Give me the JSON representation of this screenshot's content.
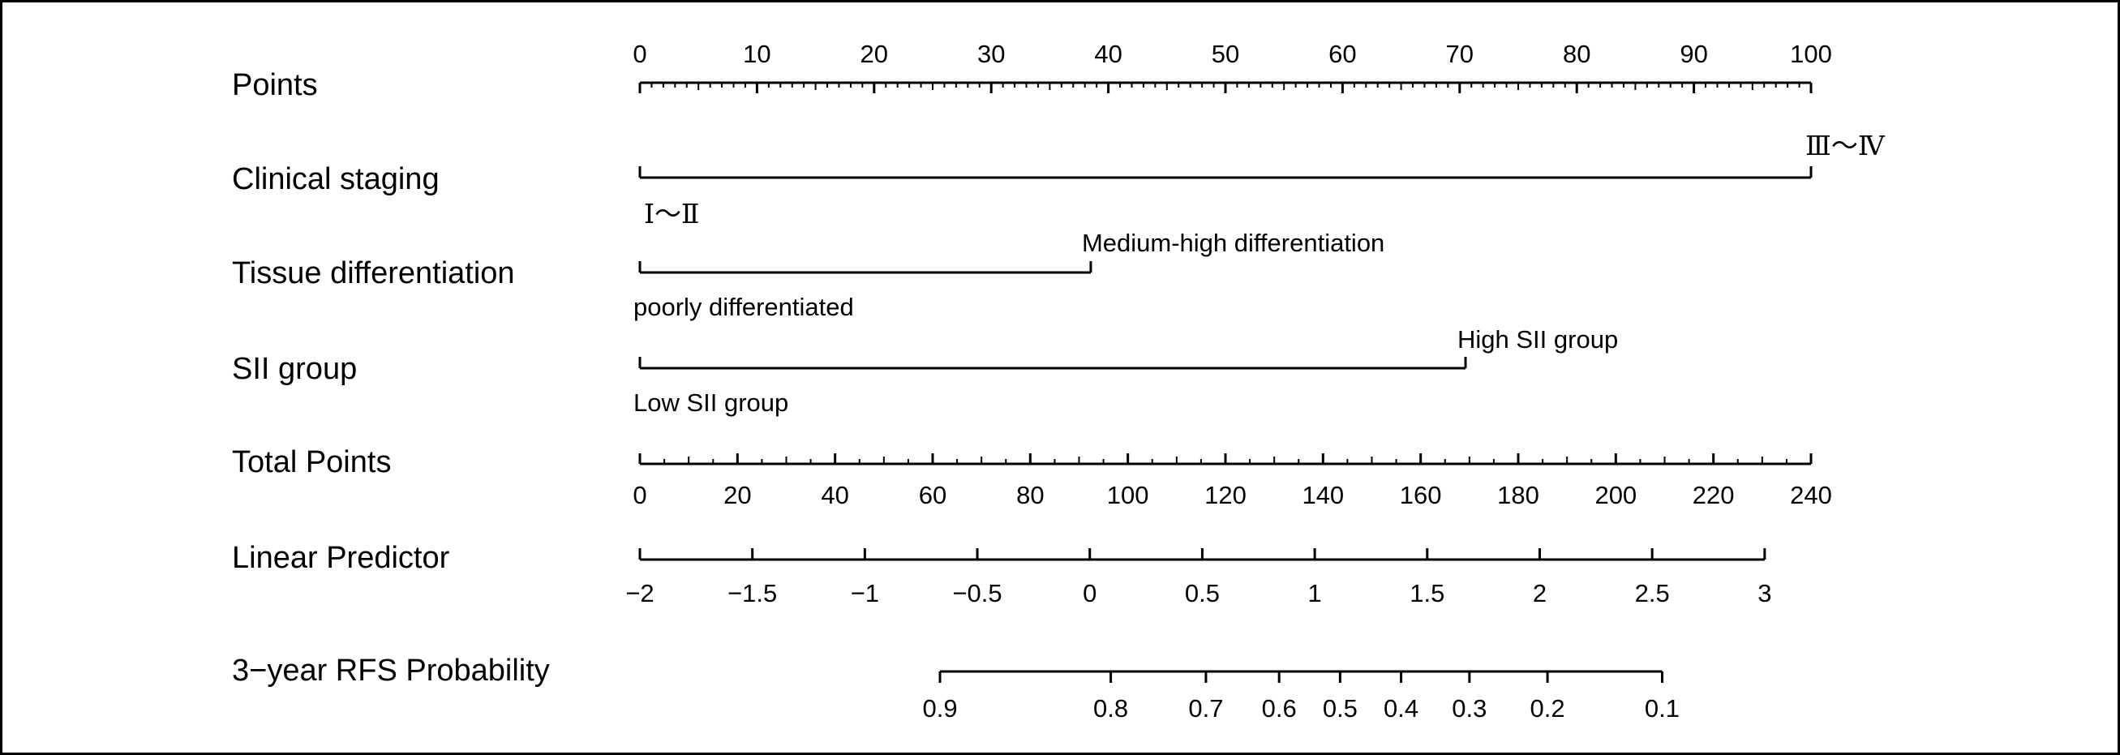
{
  "chart_data": {
    "type": "nomogram",
    "title": "",
    "rows": [
      {
        "id": "points",
        "label": "Points",
        "axis": {
          "min": 0,
          "max": 100,
          "major_ticks": [
            0,
            10,
            20,
            30,
            40,
            50,
            60,
            70,
            80,
            90,
            100
          ],
          "minor_step": 1
        }
      },
      {
        "id": "clinical_staging",
        "label": "Clinical staging",
        "levels": [
          {
            "label": "Ⅰ～Ⅱ",
            "points": 0
          },
          {
            "label": "Ⅲ～Ⅳ",
            "points": 100
          }
        ]
      },
      {
        "id": "tissue_differentiation",
        "label": "Tissue differentiation",
        "levels": [
          {
            "label": "poorly differentiated",
            "points": 0
          },
          {
            "label": "Medium-high differentiation",
            "points": 38.5
          }
        ]
      },
      {
        "id": "sii_group",
        "label": "SII group",
        "levels": [
          {
            "label": "Low SII group",
            "points": 0
          },
          {
            "label": "High SII group",
            "points": 70.5
          }
        ]
      },
      {
        "id": "total_points",
        "label": "Total Points",
        "axis": {
          "min": 0,
          "max": 240,
          "major_ticks": [
            0,
            20,
            40,
            60,
            80,
            100,
            120,
            140,
            160,
            180,
            200,
            220,
            240
          ],
          "minor_step": 5
        }
      },
      {
        "id": "linear_predictor",
        "label": "Linear Predictor",
        "axis": {
          "min": -2,
          "max": 3,
          "major_ticks": [
            -2,
            -1.5,
            -1,
            -0.5,
            0,
            0.5,
            1,
            1.5,
            2,
            2.5,
            3
          ],
          "tick_labels": [
            "−2",
            "−1.5",
            "−1",
            "−0.5",
            "0",
            "0.5",
            "1",
            "1.5",
            "2",
            "2.5",
            "3"
          ],
          "total_points_at_min": 0,
          "total_points_at_max": 230.5
        }
      },
      {
        "id": "rfs_probability",
        "label": "3−year RFS Probability",
        "axis": {
          "ticks": [
            {
              "label": "0.9",
              "total_points": 61.5
            },
            {
              "label": "0.8",
              "total_points": 96.5
            },
            {
              "label": "0.7",
              "total_points": 116
            },
            {
              "label": "0.6",
              "total_points": 131
            },
            {
              "label": "0.5",
              "total_points": 143.5
            },
            {
              "label": "0.4",
              "total_points": 156
            },
            {
              "label": "0.3",
              "total_points": 170
            },
            {
              "label": "0.2",
              "total_points": 186
            },
            {
              "label": "0.1",
              "total_points": 209.5
            }
          ]
        }
      }
    ]
  }
}
